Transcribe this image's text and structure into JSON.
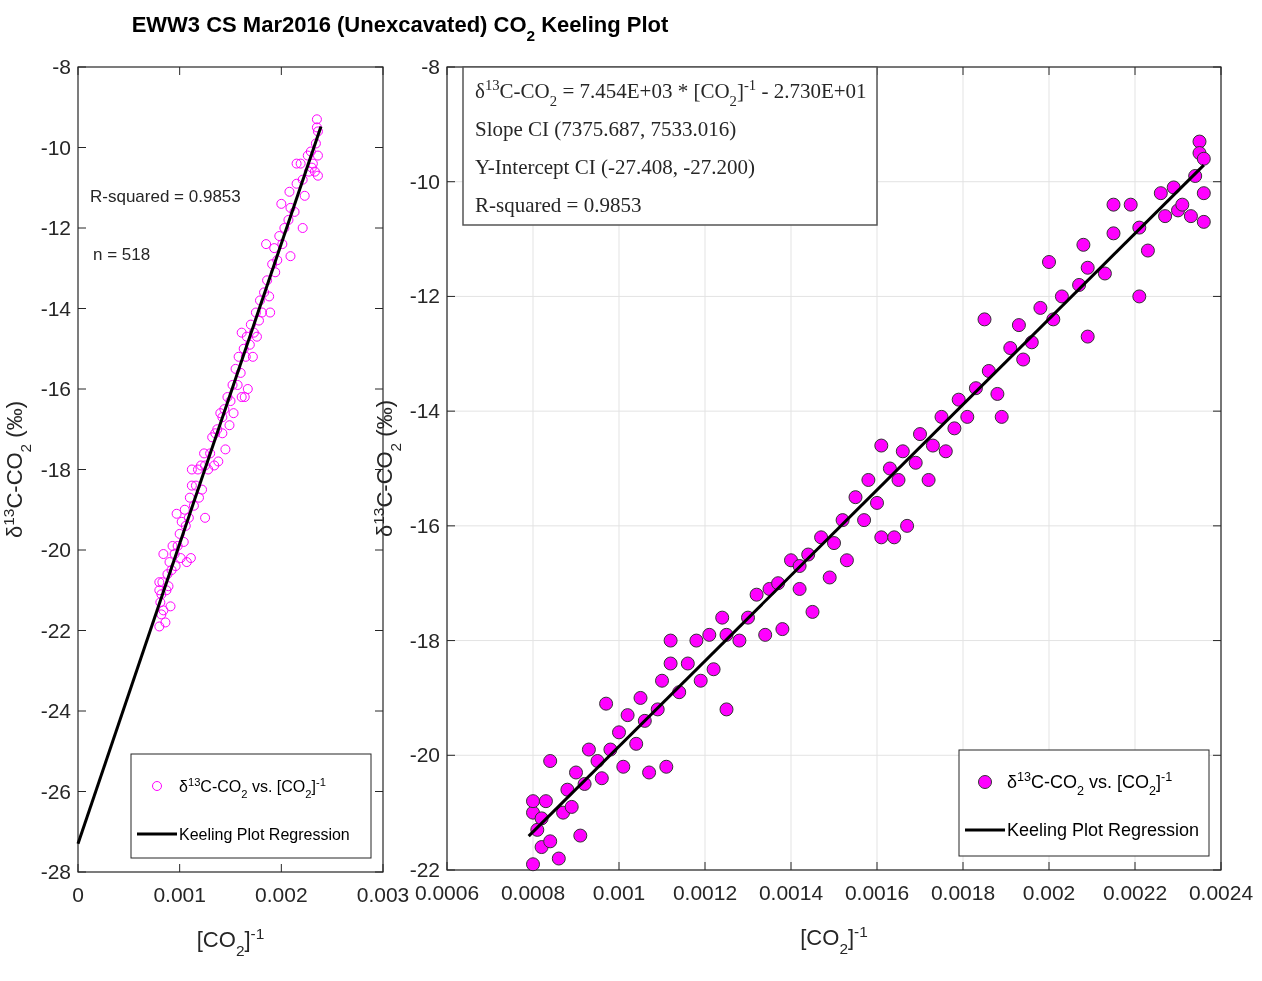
{
  "chart_data": [
    {
      "type": "scatter",
      "title": "EWW3 CS Mar2016 (Unexcavated) CO$_{2}$ Keeling Plot",
      "xlabel": "[CO$_{2}$]$^{-1}$",
      "ylabel": "δ$^{13}$C-CO$_{2}$ (‰)",
      "annotations": [
        "R-squared = 0.9853",
        "n = 518"
      ],
      "xlim": [
        0,
        0.003
      ],
      "xticks": [
        0,
        0.001,
        0.002,
        0.003
      ],
      "ylim": [
        -28,
        -8
      ],
      "yticks": [
        -28,
        -26,
        -24,
        -22,
        -20,
        -18,
        -16,
        -14,
        -12,
        -10,
        -8
      ],
      "grid": false,
      "legend": "bottom right",
      "series": [
        {
          "name": "δ$^{13}$C-CO$_{2}$ vs. [CO$_{2}$]$^{-1}$",
          "marker": "circle",
          "color": "#ff00ff",
          "x": [
            0.0008,
            0.0008,
            0.0008,
            0.00081,
            0.00082,
            0.00082,
            0.00083,
            0.00084,
            0.00084,
            0.00086,
            0.00087,
            0.00088,
            0.00089,
            0.0009,
            0.00091,
            0.00092,
            0.00093,
            0.00095,
            0.00096,
            0.00097,
            0.00098,
            0.001,
            0.00101,
            0.00102,
            0.00104,
            0.00105,
            0.00106,
            0.00107,
            0.00109,
            0.0011,
            0.00111,
            0.00112,
            0.00112,
            0.00114,
            0.00116,
            0.00118,
            0.00119,
            0.00121,
            0.00122,
            0.00124,
            0.00125,
            0.00125,
            0.00128,
            0.0013,
            0.00132,
            0.00134,
            0.00135,
            0.00137,
            0.00138,
            0.0014,
            0.00142,
            0.00142,
            0.00144,
            0.00145,
            0.00147,
            0.00149,
            0.0015,
            0.00152,
            0.00153,
            0.00155,
            0.00157,
            0.00158,
            0.0016,
            0.00161,
            0.00161,
            0.00163,
            0.00164,
            0.00165,
            0.00166,
            0.00167,
            0.00169,
            0.0017,
            0.00172,
            0.00173,
            0.00175,
            0.00176,
            0.00178,
            0.00179,
            0.00181,
            0.00183,
            0.00185,
            0.00186,
            0.00188,
            0.00189,
            0.00191,
            0.00193,
            0.00194,
            0.00196,
            0.00198,
            0.002,
            0.00201,
            0.00203,
            0.00207,
            0.00208,
            0.00209,
            0.00209,
            0.00213,
            0.00215,
            0.00215,
            0.00219,
            0.00221,
            0.00221,
            0.00223,
            0.00226,
            0.00227,
            0.00229,
            0.0023,
            0.00231,
            0.00233,
            0.00234,
            0.00235,
            0.00235,
            0.00236,
            0.00236,
            0.00236
          ],
          "values": [
            -21.9,
            -21,
            -20.8,
            -21.3,
            -21.6,
            -21.1,
            -20.8,
            -21.5,
            -20.1,
            -21.8,
            -21,
            -20.6,
            -20.9,
            -20.3,
            -21.4,
            -20.5,
            -19.9,
            -20.1,
            -20.4,
            -19.1,
            -19.9,
            -19.6,
            -20.2,
            -19.3,
            -19.8,
            -19,
            -19.4,
            -20.3,
            -19.2,
            -18.7,
            -20.2,
            -18.4,
            -18,
            -18.9,
            -18.4,
            -18,
            -18.7,
            -17.9,
            -18.5,
            -17.6,
            -17.9,
            -19.2,
            -18,
            -17.6,
            -17.2,
            -17.9,
            -17.1,
            -17,
            -17.8,
            -16.6,
            -17.1,
            -16.7,
            -16.5,
            -17.5,
            -16.2,
            -16.9,
            -16.3,
            -15.9,
            -16.6,
            -15.5,
            -15.9,
            -15.2,
            -15.6,
            -14.6,
            -16.2,
            -15,
            -16.2,
            -15.2,
            -14.7,
            -16,
            -14.9,
            -14.4,
            -15.2,
            -14.6,
            -14.1,
            -14.7,
            -14.3,
            -13.8,
            -14.1,
            -13.6,
            -12.4,
            -13.3,
            -13.7,
            -14.1,
            -12.9,
            -12.5,
            -13.1,
            -12.8,
            -12.2,
            -11.4,
            -12.4,
            -12,
            -11.8,
            -11.1,
            -11.5,
            -12.7,
            -11.6,
            -10.9,
            -10.4,
            -10.4,
            -10.8,
            -12,
            -11.2,
            -10.2,
            -10.6,
            -10.1,
            -10.5,
            -10.4,
            -10.6,
            -9.9,
            -9.3,
            -9.5,
            -9.6,
            -10.2,
            -10.7
          ]
        },
        {
          "name": "Keeling Plot Regression",
          "type": "line",
          "marker": "none",
          "color": "#000000",
          "x": [
            0,
            0.00239
          ],
          "values": [
            -27.3,
            -9.48
          ]
        }
      ]
    },
    {
      "type": "scatter",
      "xlabel": "[CO$_{2}$]$^{-1}$",
      "ylabel": "δ$^{13}$C-CO$_{2}$ (‰)",
      "annotations": [
        "δ$^{13}$C-CO$_{2}$ = 7.454E+03 * [CO$_{2}$]$^{-1}$ - 2.730E+01",
        "Slope CI (7375.687, 7533.016)",
        "Y-Intercept CI (-27.408, -27.200)",
        "R-squared = 0.9853"
      ],
      "xlim": [
        0.0006,
        0.0024
      ],
      "xticks": [
        0.0006,
        0.0008,
        0.001,
        0.0012,
        0.0014,
        0.0016,
        0.0018,
        0.002,
        0.0022,
        0.0024
      ],
      "ylim": [
        -22,
        -8
      ],
      "yticks": [
        -22,
        -20,
        -18,
        -16,
        -14,
        -12,
        -10,
        -8
      ],
      "grid": true,
      "legend": "bottom right",
      "series": [
        {
          "name": "δ$^{13}$C-CO$_{2}$ vs. [CO$_{2}$]$^{-1}$",
          "marker": "circle",
          "color": "#ff00ff",
          "x": [
            0.0008,
            0.0008,
            0.0008,
            0.00081,
            0.00082,
            0.00082,
            0.00083,
            0.00084,
            0.00084,
            0.00086,
            0.00087,
            0.00088,
            0.00089,
            0.0009,
            0.00091,
            0.00092,
            0.00093,
            0.00095,
            0.00096,
            0.00097,
            0.00098,
            0.001,
            0.00101,
            0.00102,
            0.00104,
            0.00105,
            0.00106,
            0.00107,
            0.00109,
            0.0011,
            0.00111,
            0.00112,
            0.00112,
            0.00114,
            0.00116,
            0.00118,
            0.00119,
            0.00121,
            0.00122,
            0.00124,
            0.00125,
            0.00125,
            0.00128,
            0.0013,
            0.00132,
            0.00134,
            0.00135,
            0.00137,
            0.00138,
            0.0014,
            0.00142,
            0.00142,
            0.00144,
            0.00145,
            0.00147,
            0.00149,
            0.0015,
            0.00152,
            0.00153,
            0.00155,
            0.00157,
            0.00158,
            0.0016,
            0.00161,
            0.00161,
            0.00163,
            0.00164,
            0.00165,
            0.00166,
            0.00167,
            0.00169,
            0.0017,
            0.00172,
            0.00173,
            0.00175,
            0.00176,
            0.00178,
            0.00179,
            0.00181,
            0.00183,
            0.00185,
            0.00186,
            0.00188,
            0.00189,
            0.00191,
            0.00193,
            0.00194,
            0.00196,
            0.00198,
            0.002,
            0.00201,
            0.00203,
            0.00207,
            0.00208,
            0.00209,
            0.00209,
            0.00213,
            0.00215,
            0.00215,
            0.00219,
            0.00221,
            0.00221,
            0.00223,
            0.00226,
            0.00227,
            0.00229,
            0.0023,
            0.00231,
            0.00233,
            0.00234,
            0.00235,
            0.00235,
            0.00236,
            0.00236,
            0.00236
          ],
          "values": [
            -21.9,
            -21,
            -20.8,
            -21.3,
            -21.6,
            -21.1,
            -20.8,
            -21.5,
            -20.1,
            -21.8,
            -21,
            -20.6,
            -20.9,
            -20.3,
            -21.4,
            -20.5,
            -19.9,
            -20.1,
            -20.4,
            -19.1,
            -19.9,
            -19.6,
            -20.2,
            -19.3,
            -19.8,
            -19,
            -19.4,
            -20.3,
            -19.2,
            -18.7,
            -20.2,
            -18.4,
            -18,
            -18.9,
            -18.4,
            -18,
            -18.7,
            -17.9,
            -18.5,
            -17.6,
            -17.9,
            -19.2,
            -18,
            -17.6,
            -17.2,
            -17.9,
            -17.1,
            -17,
            -17.8,
            -16.6,
            -17.1,
            -16.7,
            -16.5,
            -17.5,
            -16.2,
            -16.9,
            -16.3,
            -15.9,
            -16.6,
            -15.5,
            -15.9,
            -15.2,
            -15.6,
            -14.6,
            -16.2,
            -15,
            -16.2,
            -15.2,
            -14.7,
            -16,
            -14.9,
            -14.4,
            -15.2,
            -14.6,
            -14.1,
            -14.7,
            -14.3,
            -13.8,
            -14.1,
            -13.6,
            -12.4,
            -13.3,
            -13.7,
            -14.1,
            -12.9,
            -12.5,
            -13.1,
            -12.8,
            -12.2,
            -11.4,
            -12.4,
            -12,
            -11.8,
            -11.1,
            -11.5,
            -12.7,
            -11.6,
            -10.9,
            -10.4,
            -10.4,
            -10.8,
            -12,
            -11.2,
            -10.2,
            -10.6,
            -10.1,
            -10.5,
            -10.4,
            -10.6,
            -9.9,
            -9.3,
            -9.5,
            -9.6,
            -10.2,
            -10.7
          ]
        },
        {
          "name": "Keeling Plot Regression",
          "type": "line",
          "marker": "none",
          "color": "#000000",
          "x": [
            0.00079,
            0.00236
          ],
          "values": [
            -21.41,
            -9.71
          ]
        }
      ]
    }
  ]
}
